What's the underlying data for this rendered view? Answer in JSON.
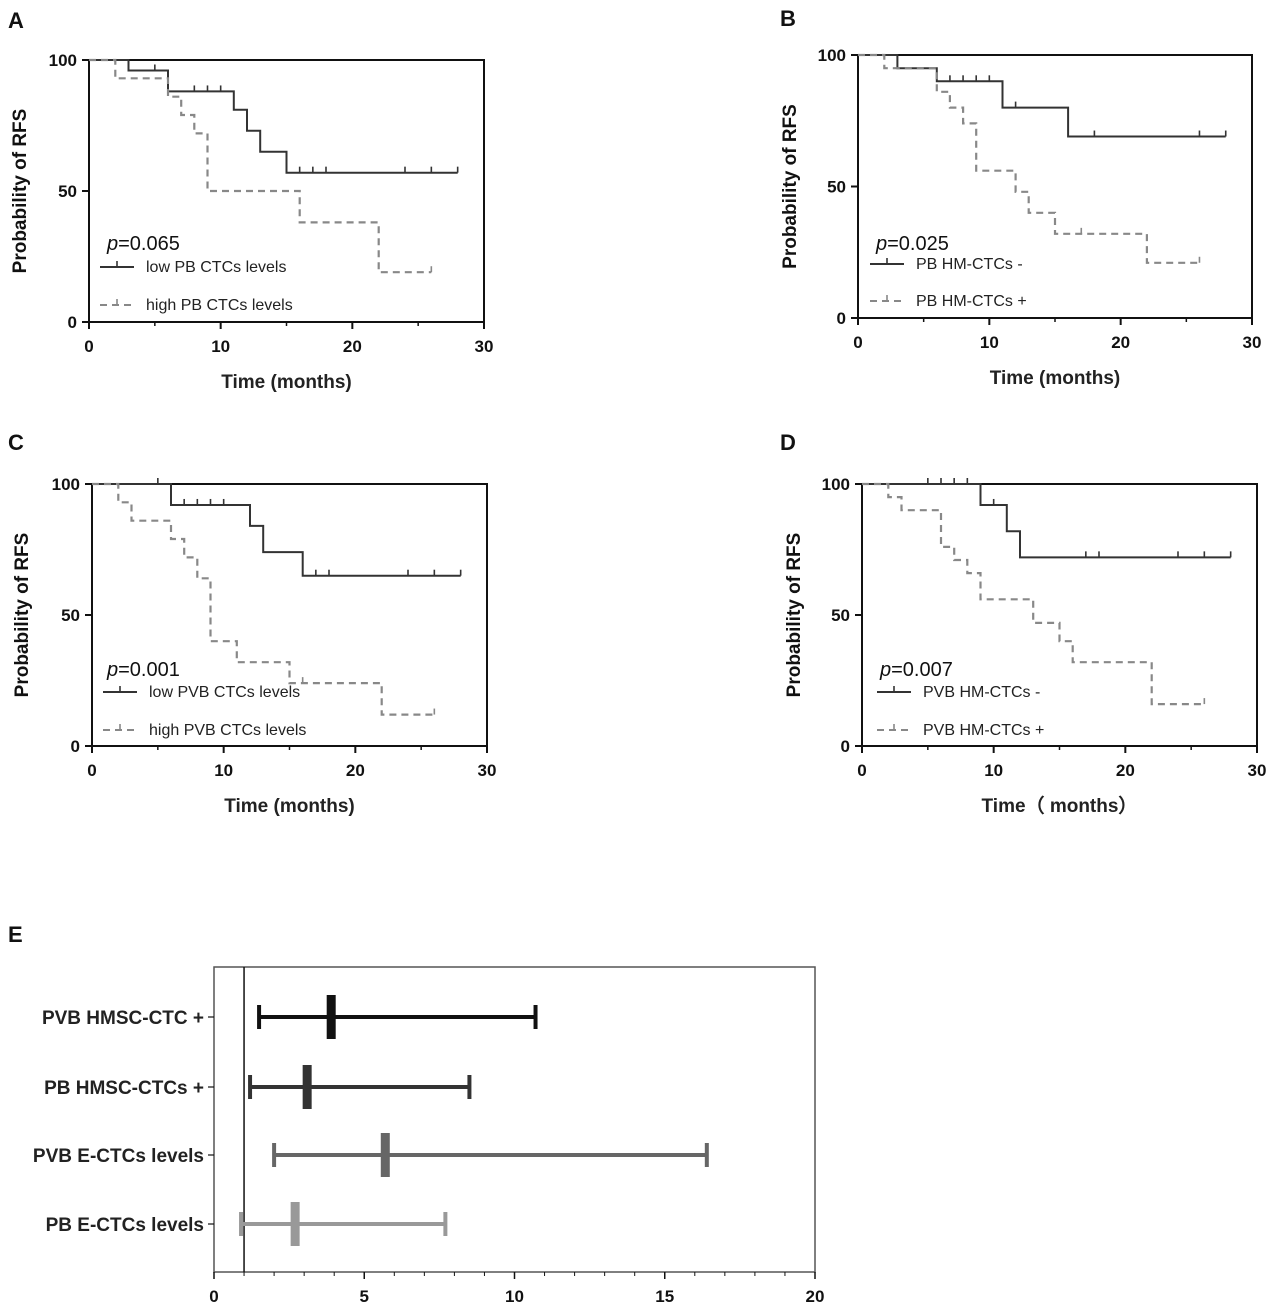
{
  "chart_data": [
    {
      "type": "line",
      "panel": "A",
      "title": "",
      "xlabel": "Time (months)",
      "ylabel": "Probability of RFS",
      "xlim": [
        0,
        30
      ],
      "ylim": [
        0,
        100
      ],
      "xticks": [
        "0",
        "10",
        "20",
        "30"
      ],
      "yticks": [
        "0",
        "50",
        "100"
      ],
      "p_prefix": "p",
      "p_value": "=0.065",
      "series": [
        {
          "name": "low PB CTCs levels",
          "style": "solid",
          "color": "#333333",
          "x": [
            0,
            3,
            3,
            6,
            6,
            11,
            11,
            12,
            12,
            13,
            13,
            15,
            15,
            28
          ],
          "y": [
            100,
            100,
            96,
            96,
            88,
            88,
            81,
            81,
            73,
            73,
            65,
            65,
            57,
            57
          ],
          "censor_x": [
            5,
            8,
            9,
            10,
            16,
            17,
            18,
            24,
            26,
            28
          ],
          "censor_y": [
            96,
            88,
            88,
            88,
            57,
            57,
            57,
            57,
            57,
            57
          ]
        },
        {
          "name": "high PB CTCs levels",
          "style": "dashed",
          "color": "#888888",
          "x": [
            0,
            2,
            2,
            6,
            6,
            7,
            7,
            8,
            8,
            9,
            9,
            16,
            16,
            22,
            22,
            26
          ],
          "y": [
            100,
            100,
            93,
            93,
            86,
            86,
            79,
            79,
            72,
            72,
            50,
            50,
            38,
            38,
            19,
            19
          ],
          "censor_x": [
            26
          ],
          "censor_y": [
            19
          ]
        }
      ]
    },
    {
      "type": "line",
      "panel": "B",
      "title": "",
      "xlabel": "Time (months)",
      "ylabel": "Probability of RFS",
      "xlim": [
        0,
        30
      ],
      "ylim": [
        0,
        100
      ],
      "xticks": [
        "0",
        "10",
        "20",
        "30"
      ],
      "yticks": [
        "0",
        "50",
        "100"
      ],
      "p_prefix": "p",
      "p_value": "=0.025",
      "series": [
        {
          "name": "PB HM-CTCs -",
          "style": "solid",
          "color": "#333333",
          "x": [
            0,
            3,
            3,
            6,
            6,
            11,
            11,
            16,
            16,
            28
          ],
          "y": [
            100,
            100,
            95,
            95,
            90,
            90,
            80,
            80,
            69,
            69
          ],
          "censor_x": [
            7,
            8,
            9,
            10,
            12,
            18,
            26,
            28
          ],
          "censor_y": [
            90,
            90,
            90,
            90,
            80,
            69,
            69,
            69
          ]
        },
        {
          "name": "PB HM-CTCs +",
          "style": "dashed",
          "color": "#888888",
          "x": [
            0,
            2,
            2,
            6,
            6,
            7,
            7,
            8,
            8,
            9,
            9,
            12,
            12,
            13,
            13,
            15,
            15,
            22,
            22,
            26
          ],
          "y": [
            100,
            100,
            95,
            95,
            86,
            86,
            80,
            80,
            74,
            74,
            56,
            56,
            48,
            48,
            40,
            40,
            32,
            32,
            21,
            21
          ],
          "censor_x": [
            17,
            26
          ],
          "censor_y": [
            32,
            21
          ]
        }
      ]
    },
    {
      "type": "line",
      "panel": "C",
      "title": "",
      "xlabel": "Time (months)",
      "ylabel": "Probability of RFS",
      "xlim": [
        0,
        30
      ],
      "ylim": [
        0,
        100
      ],
      "xticks": [
        "0",
        "10",
        "20",
        "30"
      ],
      "yticks": [
        "0",
        "50",
        "100"
      ],
      "p_prefix": "p",
      "p_value": "=0.001",
      "series": [
        {
          "name": "low PVB CTCs levels",
          "style": "solid",
          "color": "#333333",
          "x": [
            0,
            6,
            6,
            12,
            12,
            13,
            13,
            16,
            16,
            28
          ],
          "y": [
            100,
            100,
            92,
            92,
            84,
            84,
            74,
            74,
            65,
            65
          ],
          "censor_x": [
            5,
            7,
            8,
            9,
            10,
            17,
            18,
            24,
            26,
            28
          ],
          "censor_y": [
            100,
            92,
            92,
            92,
            92,
            65,
            65,
            65,
            65,
            65
          ]
        },
        {
          "name": "high PVB CTCs levels",
          "style": "dashed",
          "color": "#888888",
          "x": [
            0,
            2,
            2,
            3,
            3,
            6,
            6,
            7,
            7,
            8,
            8,
            9,
            9,
            11,
            11,
            15,
            15,
            22,
            22,
            26
          ],
          "y": [
            100,
            100,
            93,
            93,
            86,
            86,
            79,
            79,
            72,
            72,
            64,
            64,
            40,
            40,
            32,
            32,
            24,
            24,
            12,
            12
          ],
          "censor_x": [
            16,
            26
          ],
          "censor_y": [
            24,
            12
          ]
        }
      ]
    },
    {
      "type": "line",
      "panel": "D",
      "title": "",
      "xlabel": "Time（ months）",
      "ylabel": "Probability of RFS",
      "xlim": [
        0,
        30
      ],
      "ylim": [
        0,
        100
      ],
      "xticks": [
        "0",
        "10",
        "20",
        "30"
      ],
      "yticks": [
        "0",
        "50",
        "100"
      ],
      "p_prefix": "p",
      "p_value": "=0.007",
      "series": [
        {
          "name": "PVB HM-CTCs -",
          "style": "solid",
          "color": "#333333",
          "x": [
            0,
            9,
            9,
            11,
            11,
            12,
            12,
            28
          ],
          "y": [
            100,
            100,
            92,
            92,
            82,
            82,
            72,
            72
          ],
          "censor_x": [
            5,
            6,
            7,
            8,
            10,
            17,
            18,
            24,
            26,
            28
          ],
          "censor_y": [
            100,
            100,
            100,
            100,
            92,
            72,
            72,
            72,
            72,
            72
          ]
        },
        {
          "name": "PVB HM-CTCs +",
          "style": "dashed",
          "color": "#888888",
          "x": [
            0,
            2,
            2,
            3,
            3,
            6,
            6,
            7,
            7,
            8,
            8,
            9,
            9,
            13,
            13,
            15,
            15,
            16,
            16,
            22,
            22,
            26
          ],
          "y": [
            100,
            100,
            95,
            95,
            90,
            90,
            76,
            76,
            71,
            71,
            66,
            66,
            56,
            56,
            47,
            47,
            40,
            40,
            32,
            32,
            16,
            16
          ],
          "censor_x": [
            26
          ],
          "censor_y": [
            16
          ]
        }
      ]
    },
    {
      "type": "forest",
      "panel": "E",
      "title": "",
      "xlabel": "",
      "xlim": [
        0,
        20
      ],
      "xticks": [
        "0",
        "5",
        "10",
        "15",
        "20"
      ],
      "reference_line": 1,
      "rows": [
        {
          "label": "PVB HMSC-CTC +",
          "estimate": 3.9,
          "lower": 1.5,
          "upper": 10.7,
          "color": "#111111"
        },
        {
          "label": "PB HMSC-CTCs +",
          "estimate": 3.1,
          "lower": 1.2,
          "upper": 8.5,
          "color": "#333333"
        },
        {
          "label": "PVB E-CTCs levels",
          "estimate": 5.7,
          "lower": 2.0,
          "upper": 16.4,
          "color": "#666666"
        },
        {
          "label": "PB E-CTCs levels",
          "estimate": 2.7,
          "lower": 0.9,
          "upper": 7.7,
          "color": "#999999"
        }
      ]
    }
  ]
}
